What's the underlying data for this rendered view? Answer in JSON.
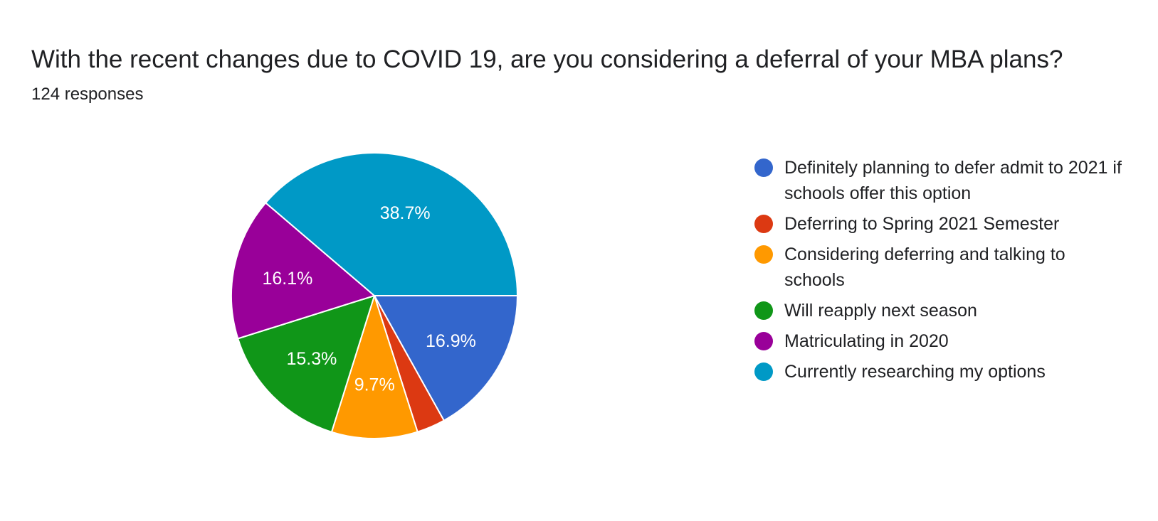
{
  "chart_data": {
    "type": "pie",
    "title": "With the recent changes due to COVID 19, are you considering a deferral of your MBA plans?",
    "subtitle": "124 responses",
    "legend_position": "right",
    "slices": [
      {
        "label": "Definitely planning to defer admit to 2021 if schools offer this option",
        "value": 16.9,
        "display": "16.9%",
        "color": "#3366cc"
      },
      {
        "label": "Deferring to Spring 2021 Semester",
        "value": 3.2,
        "display": "",
        "color": "#dc3912"
      },
      {
        "label": "Considering deferring and talking to schools",
        "value": 9.7,
        "display": "9.7%",
        "color": "#ff9900"
      },
      {
        "label": "Will reapply next season",
        "value": 15.3,
        "display": "15.3%",
        "color": "#109618"
      },
      {
        "label": "Matriculating in 2020",
        "value": 16.1,
        "display": "16.1%",
        "color": "#990099"
      },
      {
        "label": "Currently researching my options",
        "value": 38.7,
        "display": "38.7%",
        "color": "#0099c6"
      }
    ]
  }
}
